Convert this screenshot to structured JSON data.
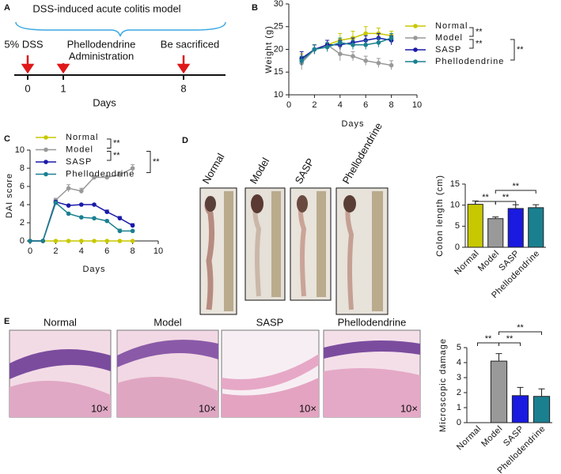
{
  "figure": {
    "panels": [
      "A",
      "B",
      "C",
      "D",
      "E"
    ],
    "timeline": {
      "title": "DSS-induced acute colitis model",
      "events": [
        [
          "5% DSS"
        ],
        [
          "Phellodendrine",
          "Administration"
        ],
        [
          "Be sacrificed"
        ]
      ],
      "days": [
        "0",
        "1",
        "8"
      ],
      "axis_label": "Days"
    },
    "photos": [
      "Normal",
      "Model",
      "SASP",
      "Phellodendrine"
    ],
    "sections": [
      {
        "title": "Normal",
        "magnification": "10×"
      },
      {
        "title": "Model",
        "magnification": "10×"
      },
      {
        "title": "SASP",
        "magnification": "10×"
      },
      {
        "title": "Phellodendrine",
        "magnification": "10×"
      }
    ]
  },
  "chart_data": [
    {
      "type": "line",
      "xlabel": "Days",
      "ylabel": "Weight (g)",
      "x": [
        1,
        2,
        3,
        4,
        5,
        6,
        7,
        8
      ],
      "xlim": [
        0,
        10
      ],
      "xticks": [
        0,
        2,
        4,
        6,
        8,
        10
      ],
      "ylim": [
        10,
        30
      ],
      "yticks": [
        10,
        15,
        20,
        25,
        30
      ],
      "series": [
        {
          "name": "Normal",
          "color": "#c8c800",
          "values": [
            18,
            20,
            21,
            22,
            22.5,
            23.5,
            23.5,
            23
          ],
          "errors": [
            1,
            1,
            1,
            1.5,
            1.5,
            1.5,
            1.2,
            1
          ]
        },
        {
          "name": "Model",
          "color": "#999999",
          "values": [
            17,
            20,
            21,
            19,
            18.5,
            17.5,
            17,
            16.5
          ],
          "errors": [
            1.5,
            1,
            1,
            1.5,
            1,
            1,
            1,
            1
          ]
        },
        {
          "name": "SASP",
          "color": "#1a1aa8",
          "values": [
            18,
            20,
            21,
            21,
            21.5,
            22,
            22.5,
            22
          ],
          "errors": [
            1.5,
            1,
            1,
            1,
            1,
            1,
            1,
            1
          ]
        },
        {
          "name": "Phellodendrine",
          "color": "#1a8090",
          "values": [
            17.5,
            20,
            20.5,
            21.5,
            21,
            21,
            21.5,
            22.5
          ],
          "errors": [
            1,
            1,
            1,
            1,
            1,
            1,
            1,
            1
          ]
        }
      ],
      "annotations": [
        "**",
        "**",
        "**"
      ]
    },
    {
      "type": "line",
      "xlabel": "Days",
      "ylabel": "DAI score",
      "x": [
        0,
        1,
        2,
        3,
        4,
        5,
        6,
        7,
        8
      ],
      "xlim": [
        0,
        10
      ],
      "xticks": [
        0,
        2,
        4,
        6,
        8,
        10
      ],
      "ylim": [
        0,
        10
      ],
      "yticks": [
        0,
        2,
        4,
        6,
        8,
        10
      ],
      "series": [
        {
          "name": "Normal",
          "color": "#c8c800",
          "values": [
            0,
            0,
            0,
            0,
            0,
            0,
            0,
            0,
            0
          ],
          "errors": [
            0,
            0,
            0,
            0,
            0,
            0,
            0,
            0,
            0
          ]
        },
        {
          "name": "Model",
          "color": "#999999",
          "values": [
            0,
            0,
            4.5,
            5.8,
            5.5,
            7,
            7,
            7.3,
            8
          ],
          "errors": [
            0,
            0,
            0.2,
            0.4,
            0.3,
            0.2,
            0.2,
            0.3,
            0.4
          ]
        },
        {
          "name": "SASP",
          "color": "#1a1aa8",
          "values": [
            0,
            0,
            4.3,
            3.9,
            4,
            4,
            3.2,
            2.5,
            1.7
          ],
          "errors": [
            0,
            0,
            0.1,
            0.1,
            0.1,
            0.1,
            0.2,
            0.2,
            0.2
          ]
        },
        {
          "name": "Phellodendrine",
          "color": "#1a8090",
          "values": [
            0,
            0,
            4.2,
            3,
            2.6,
            2.5,
            2.2,
            1.1,
            1.1
          ],
          "errors": [
            0,
            0,
            0.1,
            0.1,
            0.1,
            0.1,
            0.1,
            0.2,
            0.1
          ]
        }
      ],
      "annotations": [
        "**",
        "**",
        "**"
      ]
    },
    {
      "type": "bar",
      "ylabel": "Colon length (cm)",
      "categories": [
        "Normal",
        "Model",
        "SASP",
        "Phellodendrine"
      ],
      "values": [
        10.2,
        6.8,
        9.2,
        9.4
      ],
      "errors": [
        0.8,
        0.4,
        0.9,
        0.7
      ],
      "colors": [
        "#c8c800",
        "#999999",
        "#1a1ae0",
        "#1a8090"
      ],
      "ylim": [
        0,
        15
      ],
      "yticks": [
        0,
        5,
        10,
        15
      ],
      "annotations": [
        "**",
        "**",
        "**"
      ]
    },
    {
      "type": "bar",
      "ylabel": "Microscopic damage",
      "categories": [
        "Normal",
        "Model",
        "SASP",
        "Phellodendrine"
      ],
      "values": [
        0,
        4.1,
        1.8,
        1.75
      ],
      "errors": [
        0,
        0.5,
        0.55,
        0.5
      ],
      "colors": [
        "#c8c800",
        "#999999",
        "#1a1ae0",
        "#1a8090"
      ],
      "ylim": [
        0,
        5
      ],
      "yticks": [
        0,
        1,
        2,
        3,
        4,
        5
      ],
      "annotations": [
        "**",
        "**",
        "**"
      ]
    }
  ]
}
